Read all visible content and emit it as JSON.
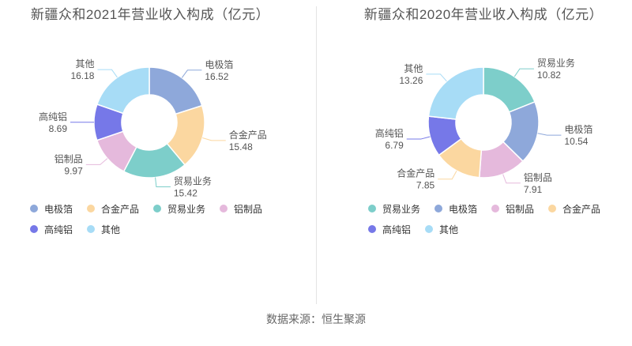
{
  "page": {
    "background": "#ffffff"
  },
  "footer": {
    "source_text": "数据来源：恒生聚源"
  },
  "chart_data": [
    {
      "type": "pie",
      "variant": "donut",
      "title": "新疆众和2021年营业收入构成（亿元）",
      "unit": "亿元",
      "start_angle_deg": 0,
      "clockwise": true,
      "inner_radius_ratio": 0.5,
      "labels_show_value": true,
      "series": [
        {
          "name": "电极箔",
          "value": 16.52,
          "color": "#8EA8DA"
        },
        {
          "name": "合金产品",
          "value": 15.48,
          "color": "#FBD7A0"
        },
        {
          "name": "贸易业务",
          "value": 15.42,
          "color": "#7DCECA"
        },
        {
          "name": "铝制品",
          "value": 9.97,
          "color": "#E5B9DC"
        },
        {
          "name": "高纯铝",
          "value": 8.69,
          "color": "#7678E8"
        },
        {
          "name": "其他",
          "value": 16.18,
          "color": "#A7DCF6"
        }
      ],
      "legend": [
        "电极箔",
        "合金产品",
        "贸易业务",
        "铝制品",
        "高纯铝",
        "其他"
      ]
    },
    {
      "type": "pie",
      "variant": "donut",
      "title": "新疆众和2020年营业收入构成（亿元）",
      "unit": "亿元",
      "start_angle_deg": 0,
      "clockwise": true,
      "inner_radius_ratio": 0.5,
      "labels_show_value": true,
      "series": [
        {
          "name": "贸易业务",
          "value": 10.82,
          "color": "#7DCECA"
        },
        {
          "name": "电极箔",
          "value": 10.54,
          "color": "#8EA8DA"
        },
        {
          "name": "铝制品",
          "value": 7.91,
          "color": "#E5B9DC"
        },
        {
          "name": "合金产品",
          "value": 7.85,
          "color": "#FBD7A0"
        },
        {
          "name": "高纯铝",
          "value": 6.79,
          "color": "#7678E8"
        },
        {
          "name": "其他",
          "value": 13.26,
          "color": "#A7DCF6"
        }
      ],
      "legend": [
        "贸易业务",
        "电极箔",
        "铝制品",
        "合金产品",
        "高纯铝",
        "其他"
      ]
    }
  ]
}
